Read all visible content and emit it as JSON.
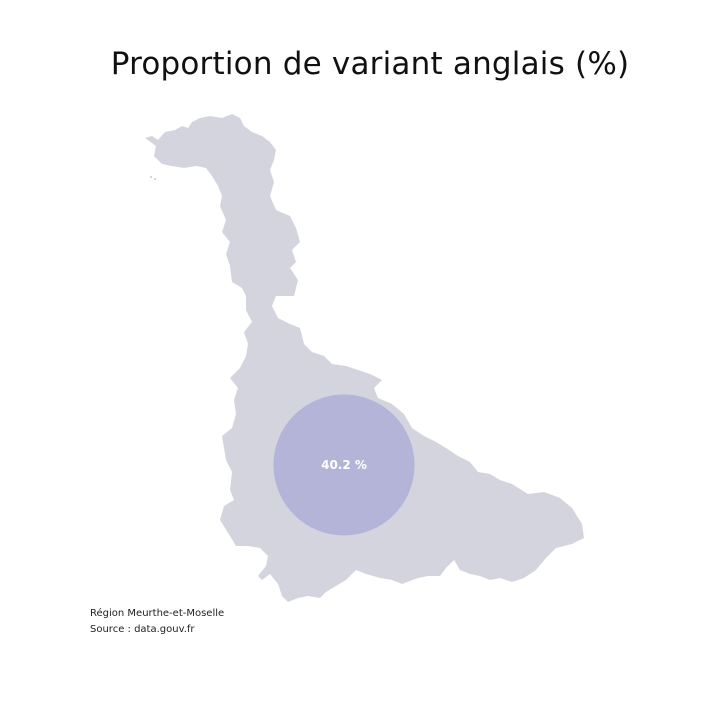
{
  "title": "Proportion de variant anglais (%)",
  "map": {
    "region_fill": "#d4d4de",
    "bubble_fill": "#a9a9d6",
    "bubble_stroke": "#b3b3dc",
    "bubbles": [
      {
        "label": "40.2 %",
        "value": 40.2
      }
    ]
  },
  "footer": {
    "region": "Région Meurthe-et-Moselle",
    "source": "Source : data.gouv.fr"
  }
}
